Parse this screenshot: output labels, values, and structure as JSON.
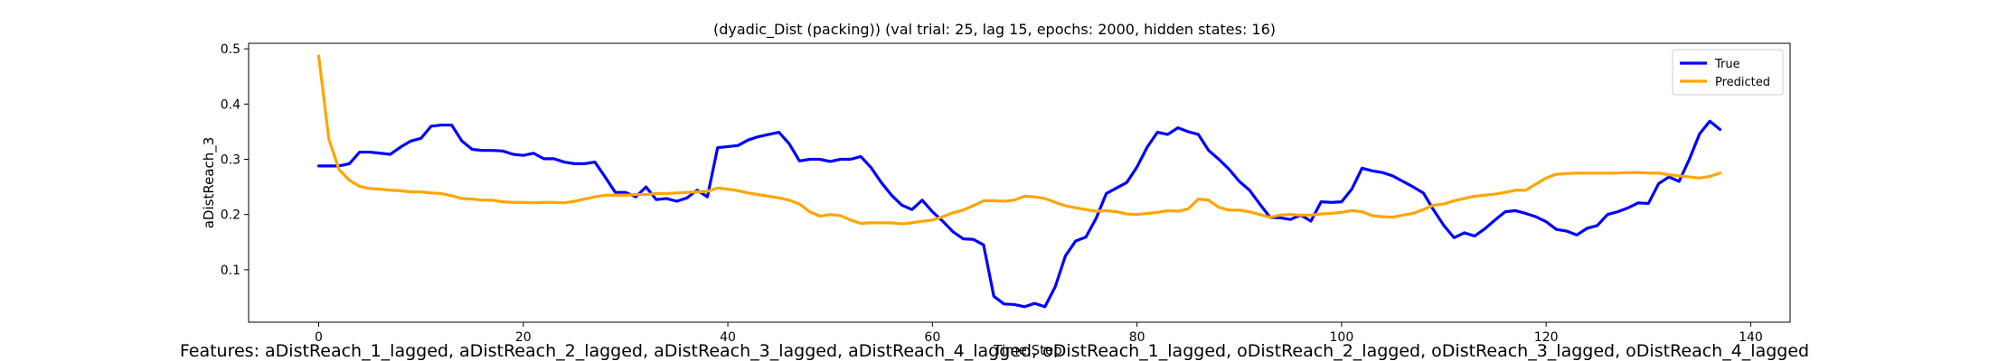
{
  "chart_data": {
    "type": "line",
    "title": "(dyadic_Dist (packing)) (val trial: 25, lag 15, epochs: 2000, hidden states: 16)",
    "xlabel": "Time Step",
    "ylabel": "aDistReach_3",
    "xlim": [
      -6.85,
      143.85
    ],
    "ylim": [
      0.005,
      0.51
    ],
    "xticks": [
      0,
      20,
      40,
      60,
      80,
      100,
      120,
      140
    ],
    "yticks": [
      0.1,
      0.2,
      0.3,
      0.4,
      0.5
    ],
    "xtick_labels": [
      "0",
      "20",
      "40",
      "60",
      "80",
      "100",
      "120",
      "140"
    ],
    "ytick_labels": [
      "0.1",
      "0.2",
      "0.3",
      "0.4",
      "0.5"
    ],
    "grid": false,
    "legend_position": "top-right",
    "series": [
      {
        "name": "True",
        "color": "#0000ff",
        "values": [
          0.288,
          0.288,
          0.288,
          0.292,
          0.313,
          0.313,
          0.311,
          0.309,
          0.322,
          0.333,
          0.338,
          0.36,
          0.362,
          0.362,
          0.333,
          0.318,
          0.316,
          0.316,
          0.315,
          0.309,
          0.307,
          0.311,
          0.301,
          0.301,
          0.295,
          0.292,
          0.292,
          0.295,
          0.268,
          0.24,
          0.24,
          0.232,
          0.25,
          0.227,
          0.229,
          0.224,
          0.23,
          0.244,
          0.232,
          0.321,
          0.323,
          0.325,
          0.335,
          0.341,
          0.345,
          0.349,
          0.328,
          0.297,
          0.3,
          0.3,
          0.296,
          0.3,
          0.3,
          0.305,
          0.285,
          0.258,
          0.235,
          0.217,
          0.209,
          0.226,
          0.205,
          0.188,
          0.169,
          0.156,
          0.155,
          0.145,
          0.052,
          0.038,
          0.037,
          0.033,
          0.039,
          0.033,
          0.069,
          0.125,
          0.152,
          0.159,
          0.193,
          0.238,
          0.248,
          0.258,
          0.286,
          0.322,
          0.349,
          0.345,
          0.357,
          0.35,
          0.345,
          0.316,
          0.3,
          0.282,
          0.26,
          0.244,
          0.219,
          0.195,
          0.194,
          0.191,
          0.199,
          0.188,
          0.223,
          0.222,
          0.223,
          0.246,
          0.284,
          0.279,
          0.276,
          0.27,
          0.26,
          0.25,
          0.239,
          0.208,
          0.18,
          0.158,
          0.167,
          0.161,
          0.174,
          0.19,
          0.205,
          0.207,
          0.202,
          0.196,
          0.187,
          0.173,
          0.17,
          0.163,
          0.175,
          0.18,
          0.2,
          0.205,
          0.212,
          0.221,
          0.22,
          0.256,
          0.268,
          0.26,
          0.3,
          0.346,
          0.369,
          0.354
        ]
      },
      {
        "name": "Predicted",
        "color": "#ffa500",
        "values": [
          0.487,
          0.336,
          0.281,
          0.262,
          0.251,
          0.247,
          0.246,
          0.244,
          0.243,
          0.241,
          0.241,
          0.239,
          0.238,
          0.234,
          0.229,
          0.228,
          0.226,
          0.226,
          0.223,
          0.222,
          0.222,
          0.221,
          0.222,
          0.222,
          0.221,
          0.224,
          0.228,
          0.232,
          0.235,
          0.235,
          0.235,
          0.236,
          0.236,
          0.238,
          0.238,
          0.239,
          0.24,
          0.241,
          0.242,
          0.248,
          0.246,
          0.243,
          0.239,
          0.236,
          0.233,
          0.23,
          0.226,
          0.219,
          0.205,
          0.197,
          0.2,
          0.198,
          0.19,
          0.184,
          0.185,
          0.185,
          0.185,
          0.183,
          0.185,
          0.188,
          0.19,
          0.196,
          0.203,
          0.208,
          0.216,
          0.225,
          0.225,
          0.224,
          0.226,
          0.233,
          0.232,
          0.229,
          0.222,
          0.216,
          0.212,
          0.209,
          0.206,
          0.207,
          0.205,
          0.201,
          0.2,
          0.202,
          0.204,
          0.207,
          0.206,
          0.21,
          0.228,
          0.226,
          0.213,
          0.208,
          0.208,
          0.205,
          0.2,
          0.195,
          0.199,
          0.2,
          0.199,
          0.199,
          0.201,
          0.202,
          0.204,
          0.207,
          0.205,
          0.198,
          0.196,
          0.195,
          0.199,
          0.202,
          0.209,
          0.217,
          0.219,
          0.225,
          0.229,
          0.233,
          0.235,
          0.237,
          0.24,
          0.244,
          0.244,
          0.255,
          0.266,
          0.273,
          0.274,
          0.275,
          0.275,
          0.275,
          0.275,
          0.275,
          0.276,
          0.276,
          0.275,
          0.275,
          0.272,
          0.27,
          0.268,
          0.266,
          0.269,
          0.275
        ]
      }
    ]
  },
  "caption": "Features: aDistReach_1_lagged, aDistReach_2_lagged, aDistReach_3_lagged, aDistReach_4_lagged, oDistReach_1_lagged, oDistReach_2_lagged, oDistReach_3_lagged, oDistReach_4_lagged"
}
